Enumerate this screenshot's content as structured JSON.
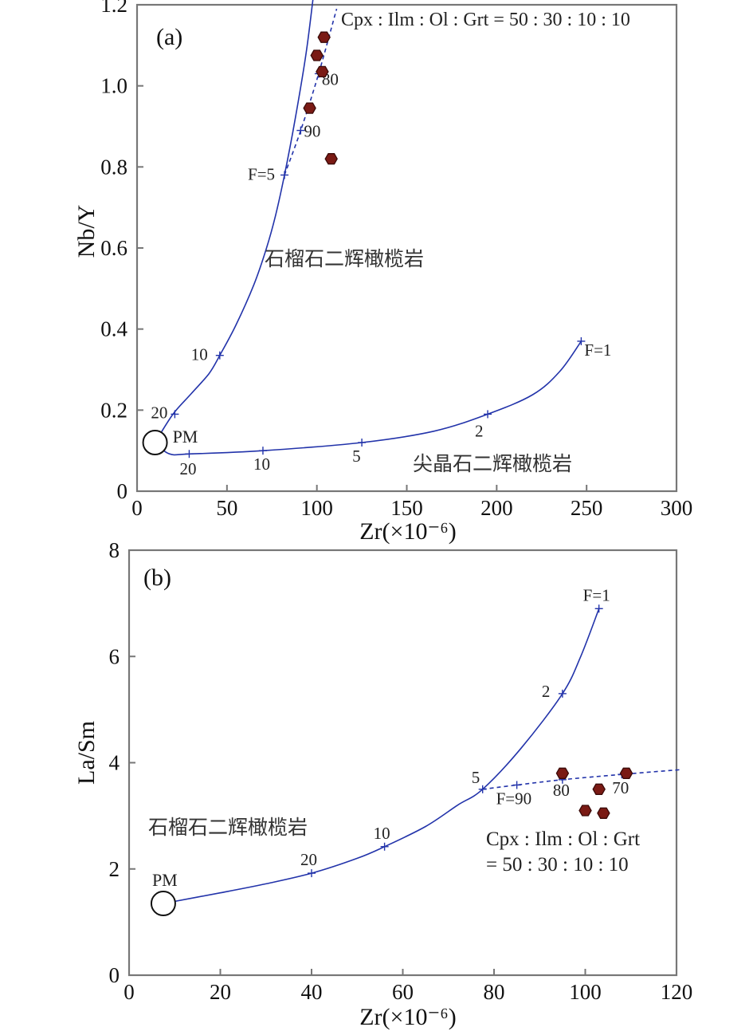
{
  "chart_data": [
    {
      "type": "line",
      "panel_label": "(a)",
      "title": "",
      "xlabel": "Zr(×10⁻⁶)",
      "ylabel": "Nb/Y",
      "xlim": [
        0,
        300
      ],
      "ylim": [
        0,
        1.2
      ],
      "xticks": [
        "0",
        "50",
        "100",
        "150",
        "200",
        "250",
        "300"
      ],
      "yticks": [
        "0",
        "0.2",
        "0.4",
        "0.6",
        "0.8",
        "1.0",
        "1.2"
      ],
      "pm": {
        "label": "PM",
        "x": 10,
        "y": 0.12
      },
      "series": [
        {
          "name": "石榴石二辉橄榄岩",
          "style": "solid",
          "points": [
            [
              10,
              0.12
            ],
            [
              20,
              0.19
            ],
            [
              30,
              0.24
            ],
            [
              40,
              0.29
            ],
            [
              46,
              0.335
            ],
            [
              55,
              0.41
            ],
            [
              65,
              0.51
            ],
            [
              72,
              0.6
            ],
            [
              77,
              0.68
            ],
            [
              82,
              0.78
            ],
            [
              88,
              0.92
            ],
            [
              94,
              1.08
            ],
            [
              98,
              1.22
            ]
          ],
          "marks": [
            {
              "x": 21,
              "y": 0.19,
              "label": "20"
            },
            {
              "x": 46,
              "y": 0.335,
              "label": "10"
            },
            {
              "x": 82,
              "y": 0.78,
              "label": "F=5"
            }
          ]
        },
        {
          "name": "尖晶石二辉橄榄岩",
          "style": "solid",
          "points": [
            [
              10,
              0.12
            ],
            [
              18,
              0.092
            ],
            [
              30,
              0.092
            ],
            [
              70,
              0.1
            ],
            [
              125,
              0.12
            ],
            [
              165,
              0.148
            ],
            [
              195,
              0.19
            ],
            [
              220,
              0.238
            ],
            [
              235,
              0.295
            ],
            [
              247,
              0.37
            ]
          ],
          "marks": [
            {
              "x": 29,
              "y": 0.092,
              "label": "20"
            },
            {
              "x": 70,
              "y": 0.1,
              "label": "10"
            },
            {
              "x": 125,
              "y": 0.12,
              "label": "5"
            },
            {
              "x": 195,
              "y": 0.19,
              "label": "2"
            },
            {
              "x": 247,
              "y": 0.37,
              "label": "F=1"
            }
          ]
        },
        {
          "name": "Cpx : Ilm : Ol : Grt = 50 : 30 : 10 : 10",
          "style": "dashed",
          "points": [
            [
              82,
              0.78
            ],
            [
              91,
              0.89
            ],
            [
              101,
              1.03
            ],
            [
              111,
              1.19
            ]
          ],
          "marks": [
            {
              "x": 91,
              "y": 0.89,
              "label": "90"
            },
            {
              "x": 101,
              "y": 1.03,
              "label": "80"
            }
          ]
        }
      ],
      "samples": [
        [
          104,
          1.12
        ],
        [
          100,
          1.075
        ],
        [
          103,
          1.035
        ],
        [
          96,
          0.945
        ],
        [
          108,
          0.82
        ]
      ],
      "annotations": [
        "Cpx : Ilm : Ol : Grt = 50 : 30 : 10 : 10",
        "石榴石二辉橄榄岩",
        "尖晶石二辉橄榄岩"
      ]
    },
    {
      "type": "line",
      "panel_label": "(b)",
      "title": "",
      "xlabel": "Zr(×10⁻⁶)",
      "ylabel": "La/Sm",
      "xlim": [
        0,
        120
      ],
      "ylim": [
        0,
        8
      ],
      "xticks": [
        "0",
        "20",
        "40",
        "60",
        "80",
        "100",
        "120"
      ],
      "yticks": [
        "0",
        "2",
        "4",
        "6",
        "8"
      ],
      "pm": {
        "label": "PM",
        "x": 7.5,
        "y": 1.35
      },
      "series": [
        {
          "name": "石榴石二辉橄榄岩",
          "style": "solid",
          "points": [
            [
              7.5,
              1.35
            ],
            [
              20,
              1.55
            ],
            [
              30,
              1.72
            ],
            [
              40,
              1.92
            ],
            [
              50,
              2.2
            ],
            [
              56,
              2.42
            ],
            [
              65,
              2.8
            ],
            [
              72,
              3.2
            ],
            [
              77.5,
              3.5
            ],
            [
              86,
              4.28
            ],
            [
              95,
              5.3
            ],
            [
              99,
              6.0
            ],
            [
              103,
              6.9
            ]
          ],
          "marks": [
            {
              "x": 40,
              "y": 1.92,
              "label": "20"
            },
            {
              "x": 56,
              "y": 2.42,
              "label": "10"
            },
            {
              "x": 77.5,
              "y": 3.5,
              "label": "5"
            },
            {
              "x": 95,
              "y": 5.3,
              "label": "2"
            },
            {
              "x": 103,
              "y": 6.9,
              "label": "F=1"
            }
          ]
        },
        {
          "name": "Cpx : Ilm : Ol : Grt = 50 : 30 : 10 : 10",
          "style": "dashed",
          "points": [
            [
              77.5,
              3.5
            ],
            [
              85,
              3.58
            ],
            [
              95,
              3.68
            ],
            [
              108,
              3.78
            ],
            [
              121,
              3.87
            ]
          ],
          "marks": [
            {
              "x": 85,
              "y": 3.58,
              "label": "F=90"
            },
            {
              "x": 95,
              "y": 3.68,
              "label": "80"
            },
            {
              "x": 108,
              "y": 3.78,
              "label": "70"
            }
          ]
        }
      ],
      "samples": [
        [
          95,
          3.8
        ],
        [
          109,
          3.8
        ],
        [
          103,
          3.5
        ],
        [
          100,
          3.1
        ],
        [
          104,
          3.05
        ]
      ],
      "annotations": [
        "Cpx : Ilm : Ol : Grt",
        "= 50 : 30 : 10 : 10",
        "石榴石二辉橄榄岩"
      ]
    }
  ]
}
